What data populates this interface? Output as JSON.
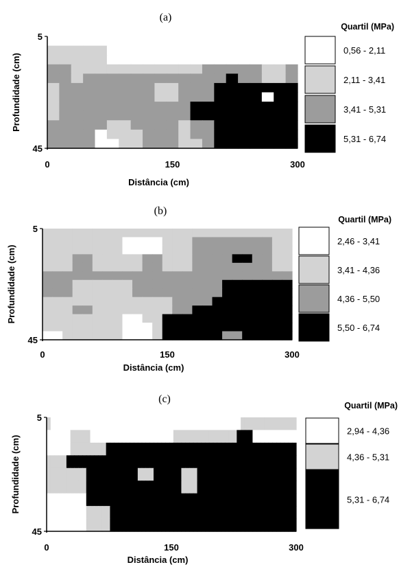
{
  "chart_data": [
    {
      "type": "heatmap",
      "title": "(a)",
      "xlabel": "Distância (cm)",
      "ylabel": "Profundidade (cm)",
      "xlim": [
        0,
        300
      ],
      "ylim": [
        5,
        45
      ],
      "x_ticks": [
        "0",
        "150",
        "300"
      ],
      "y_ticks": [
        "5",
        "45"
      ],
      "legend_title": "Quartil (MPa)",
      "classes": [
        {
          "label": "0,56 - 2,11",
          "color": "#ffffff"
        },
        {
          "label": "2,11 - 3,41",
          "color": "#d3d3d3"
        },
        {
          "label": "3,41 - 5,31",
          "color": "#9c9c9c"
        },
        {
          "label": "5,31 - 6,74",
          "color": "#000000"
        }
      ],
      "grid": [
        [
          0,
          0,
          0,
          0,
          0,
          0,
          0,
          0,
          0,
          0,
          0,
          0,
          0,
          0,
          0,
          0,
          0,
          0,
          0,
          0,
          0
        ],
        [
          1,
          1,
          1,
          1,
          1,
          0,
          0,
          0,
          0,
          0,
          0,
          0,
          0,
          0,
          0,
          0,
          0,
          0,
          0,
          0,
          0
        ],
        [
          1,
          1,
          1,
          1,
          1,
          0,
          0,
          0,
          0,
          0,
          0,
          0,
          0,
          0,
          0,
          0,
          0,
          0,
          0,
          0,
          0
        ],
        [
          2,
          2,
          1,
          1,
          1,
          1,
          1,
          1,
          1,
          1,
          1,
          1,
          1,
          2,
          2,
          2,
          2,
          2,
          1,
          1,
          2
        ],
        [
          2,
          2,
          1,
          2,
          2,
          2,
          2,
          2,
          2,
          2,
          2,
          2,
          2,
          2,
          2,
          3,
          2,
          2,
          1,
          1,
          2
        ],
        [
          1,
          2,
          2,
          2,
          2,
          2,
          2,
          2,
          2,
          1,
          1,
          2,
          2,
          2,
          3,
          3,
          3,
          3,
          3,
          3,
          3
        ],
        [
          1,
          2,
          2,
          2,
          2,
          2,
          2,
          2,
          2,
          1,
          1,
          2,
          2,
          2,
          3,
          3,
          3,
          3,
          0,
          3,
          3
        ],
        [
          1,
          2,
          2,
          2,
          2,
          2,
          2,
          2,
          2,
          2,
          2,
          2,
          3,
          3,
          3,
          3,
          3,
          3,
          3,
          3,
          3
        ],
        [
          1,
          2,
          2,
          2,
          2,
          2,
          2,
          2,
          2,
          2,
          2,
          2,
          3,
          3,
          3,
          3,
          3,
          3,
          3,
          3,
          3
        ],
        [
          2,
          2,
          2,
          2,
          2,
          1,
          1,
          2,
          2,
          2,
          2,
          1,
          2,
          2,
          3,
          3,
          3,
          3,
          3,
          3,
          3
        ],
        [
          2,
          2,
          2,
          2,
          0,
          1,
          1,
          1,
          2,
          2,
          2,
          1,
          2,
          2,
          3,
          3,
          3,
          3,
          3,
          3,
          3
        ],
        [
          2,
          2,
          2,
          2,
          0,
          0,
          1,
          1,
          2,
          2,
          2,
          1,
          1,
          2,
          3,
          3,
          3,
          3,
          3,
          3,
          3
        ]
      ]
    },
    {
      "type": "heatmap",
      "title": "(b)",
      "xlabel": "Distância (cm)",
      "ylabel": "Profundidade (cm)",
      "xlim": [
        0,
        300
      ],
      "ylim": [
        5,
        45
      ],
      "x_ticks": [
        "0",
        "150",
        "300"
      ],
      "y_ticks": [
        "5",
        "45"
      ],
      "legend_title": "Quartil (MPa)",
      "classes": [
        {
          "label": "2,46 - 3,41",
          "color": "#ffffff"
        },
        {
          "label": "3,41 - 4,36",
          "color": "#d3d3d3"
        },
        {
          "label": "4,36 - 5,50",
          "color": "#9c9c9c"
        },
        {
          "label": "5,50 - 6,74",
          "color": "#000000"
        }
      ],
      "grid": [
        [
          1,
          1,
          1,
          1,
          1,
          1,
          1,
          1,
          1,
          1,
          1,
          1,
          1,
          1,
          1,
          1,
          1,
          1,
          1,
          1,
          1,
          1,
          1,
          1,
          1
        ],
        [
          1,
          1,
          1,
          1,
          1,
          1,
          1,
          1,
          0,
          0,
          0,
          0,
          1,
          1,
          1,
          2,
          2,
          2,
          2,
          2,
          2,
          2,
          2,
          1,
          1
        ],
        [
          1,
          1,
          1,
          1,
          1,
          1,
          1,
          1,
          0,
          0,
          0,
          0,
          1,
          1,
          1,
          2,
          2,
          2,
          2,
          2,
          2,
          2,
          2,
          1,
          1
        ],
        [
          1,
          1,
          1,
          2,
          2,
          1,
          1,
          1,
          1,
          1,
          2,
          2,
          1,
          1,
          1,
          2,
          2,
          2,
          2,
          3,
          3,
          2,
          2,
          1,
          1
        ],
        [
          1,
          1,
          1,
          2,
          2,
          1,
          1,
          1,
          1,
          1,
          2,
          2,
          1,
          1,
          1,
          2,
          2,
          2,
          2,
          2,
          2,
          2,
          2,
          1,
          1
        ],
        [
          2,
          2,
          2,
          2,
          2,
          2,
          2,
          2,
          2,
          2,
          2,
          2,
          2,
          2,
          2,
          2,
          2,
          2,
          2,
          2,
          2,
          2,
          2,
          2,
          2
        ],
        [
          2,
          2,
          2,
          1,
          1,
          1,
          1,
          1,
          1,
          2,
          2,
          2,
          2,
          2,
          2,
          2,
          2,
          2,
          3,
          3,
          3,
          3,
          3,
          3,
          3
        ],
        [
          2,
          2,
          2,
          1,
          1,
          1,
          1,
          1,
          1,
          2,
          2,
          2,
          2,
          2,
          2,
          2,
          2,
          2,
          3,
          3,
          3,
          3,
          3,
          3,
          3
        ],
        [
          1,
          1,
          1,
          1,
          1,
          1,
          1,
          1,
          1,
          1,
          1,
          1,
          1,
          2,
          2,
          2,
          2,
          3,
          3,
          3,
          3,
          3,
          3,
          3,
          3
        ],
        [
          1,
          1,
          1,
          2,
          2,
          1,
          1,
          1,
          1,
          1,
          1,
          1,
          1,
          2,
          2,
          3,
          3,
          3,
          3,
          3,
          3,
          3,
          3,
          3,
          3
        ],
        [
          1,
          1,
          1,
          1,
          1,
          1,
          1,
          1,
          0,
          0,
          1,
          1,
          3,
          3,
          3,
          3,
          3,
          3,
          3,
          3,
          3,
          3,
          3,
          3,
          3
        ],
        [
          1,
          1,
          1,
          1,
          1,
          1,
          1,
          1,
          0,
          0,
          0,
          1,
          3,
          3,
          3,
          3,
          3,
          3,
          3,
          3,
          3,
          3,
          3,
          3,
          3
        ],
        [
          0,
          0,
          1,
          1,
          1,
          1,
          1,
          1,
          0,
          0,
          0,
          1,
          3,
          3,
          3,
          3,
          3,
          3,
          2,
          2,
          3,
          3,
          3,
          3,
          3
        ]
      ]
    },
    {
      "type": "heatmap",
      "title": "(c)",
      "xlabel": "Distância (cm)",
      "ylabel": "Profundidade (cm)",
      "xlim": [
        0,
        300
      ],
      "ylim": [
        5,
        45
      ],
      "x_ticks": [
        "0",
        "150",
        "300"
      ],
      "y_ticks": [
        "5",
        "45"
      ],
      "legend_title": "Quartil (MPa)",
      "classes": [
        {
          "label": "2,94 - 4,36",
          "color": "#ffffff"
        },
        {
          "label": "4,36 - 5,31",
          "color": "#d3d3d3"
        },
        {
          "label": "5,31 - 6,74",
          "color": "#000000"
        }
      ],
      "grid": [
        [
          1,
          0,
          0,
          0,
          0,
          0,
          0,
          0,
          0,
          0,
          0,
          0,
          0,
          0,
          0,
          0,
          0,
          0,
          0,
          0,
          0,
          0,
          0,
          0,
          0,
          0,
          0,
          0,
          0,
          0,
          0,
          0,
          0,
          0,
          0,
          0,
          0,
          0,
          0,
          0,
          0,
          0,
          0,
          0,
          0,
          0,
          0,
          0,
          0,
          1,
          1,
          1,
          1,
          1,
          1,
          1,
          1,
          1,
          1,
          1,
          1,
          1,
          1
        ],
        [
          0,
          0,
          0,
          0,
          0,
          0,
          1,
          1,
          1,
          1,
          1,
          0,
          0,
          0,
          0,
          0,
          0,
          0,
          0,
          0,
          0,
          0,
          0,
          0,
          0,
          0,
          0,
          0,
          0,
          0,
          0,
          0,
          1,
          1,
          1,
          1,
          1,
          1,
          1,
          1,
          1,
          1,
          1,
          1,
          1,
          1,
          1,
          1,
          2,
          2,
          2,
          2,
          0,
          0,
          0,
          0,
          0,
          0,
          0,
          0,
          0,
          0,
          0
        ],
        [
          0,
          0,
          0,
          0,
          0,
          0,
          1,
          1,
          1,
          1,
          1,
          1,
          1,
          1,
          1,
          2,
          2,
          2,
          2,
          2,
          2,
          2,
          2,
          2,
          2,
          2,
          2,
          2,
          2,
          2,
          2,
          2,
          2,
          2,
          2,
          2,
          2,
          2,
          2,
          2,
          2,
          2,
          2,
          2,
          2,
          2,
          2,
          2,
          2,
          2,
          2,
          2,
          2,
          2,
          2,
          2,
          2,
          2,
          2,
          2,
          2,
          2,
          2
        ],
        [
          1,
          1,
          1,
          1,
          1,
          2,
          2,
          2,
          2,
          2,
          2,
          2,
          2,
          2,
          2,
          2,
          2,
          2,
          2,
          2,
          2,
          2,
          2,
          2,
          2,
          2,
          2,
          2,
          2,
          2,
          2,
          2,
          2,
          2,
          2,
          2,
          2,
          2,
          2,
          2,
          2,
          2,
          2,
          2,
          2,
          2,
          2,
          2,
          2,
          2,
          2,
          2,
          2,
          2,
          2,
          2,
          2,
          2,
          2,
          2,
          2,
          2,
          2
        ],
        [
          1,
          1,
          1,
          1,
          1,
          1,
          1,
          1,
          1,
          1,
          2,
          2,
          2,
          2,
          2,
          2,
          2,
          2,
          2,
          2,
          2,
          2,
          2,
          1,
          1,
          1,
          1,
          2,
          2,
          2,
          2,
          2,
          2,
          2,
          1,
          1,
          1,
          1,
          2,
          2,
          2,
          2,
          2,
          2,
          2,
          2,
          2,
          2,
          2,
          2,
          2,
          2,
          2,
          2,
          2,
          2,
          2,
          2,
          2,
          2,
          2,
          2,
          2
        ],
        [
          1,
          1,
          1,
          1,
          1,
          1,
          1,
          1,
          1,
          1,
          2,
          2,
          2,
          2,
          2,
          2,
          2,
          2,
          2,
          2,
          2,
          2,
          2,
          2,
          2,
          2,
          2,
          2,
          2,
          2,
          2,
          2,
          2,
          2,
          1,
          1,
          1,
          1,
          2,
          2,
          2,
          2,
          2,
          2,
          2,
          2,
          2,
          2,
          2,
          2,
          2,
          2,
          2,
          2,
          2,
          2,
          2,
          2,
          2,
          2,
          2,
          2,
          2
        ],
        [
          0,
          0,
          0,
          0,
          0,
          0,
          0,
          0,
          0,
          0,
          2,
          2,
          2,
          2,
          2,
          2,
          2,
          2,
          2,
          2,
          2,
          2,
          2,
          2,
          2,
          2,
          2,
          2,
          2,
          2,
          2,
          2,
          2,
          2,
          2,
          2,
          2,
          2,
          2,
          2,
          2,
          2,
          2,
          2,
          2,
          2,
          2,
          2,
          2,
          2,
          2,
          2,
          2,
          2,
          2,
          2,
          2,
          2,
          2,
          2,
          2,
          2,
          2
        ],
        [
          0,
          0,
          0,
          0,
          0,
          0,
          0,
          0,
          0,
          0,
          1,
          1,
          1,
          1,
          1,
          1,
          2,
          2,
          2,
          2,
          2,
          2,
          2,
          2,
          2,
          2,
          2,
          2,
          2,
          2,
          2,
          2,
          2,
          2,
          2,
          2,
          2,
          2,
          2,
          2,
          2,
          2,
          2,
          2,
          2,
          2,
          2,
          2,
          2,
          2,
          2,
          2,
          2,
          2,
          2,
          2,
          2,
          2,
          2,
          2,
          2,
          2,
          2
        ],
        [
          0,
          0,
          0,
          0,
          0,
          0,
          0,
          0,
          0,
          0,
          1,
          1,
          1,
          1,
          1,
          1,
          2,
          2,
          2,
          2,
          2,
          2,
          2,
          2,
          2,
          2,
          2,
          2,
          2,
          2,
          2,
          2,
          2,
          2,
          2,
          2,
          2,
          2,
          2,
          2,
          2,
          2,
          2,
          2,
          2,
          2,
          2,
          2,
          2,
          2,
          2,
          2,
          2,
          2,
          2,
          2,
          2,
          2,
          2,
          2,
          2,
          2,
          2
        ]
      ]
    }
  ]
}
